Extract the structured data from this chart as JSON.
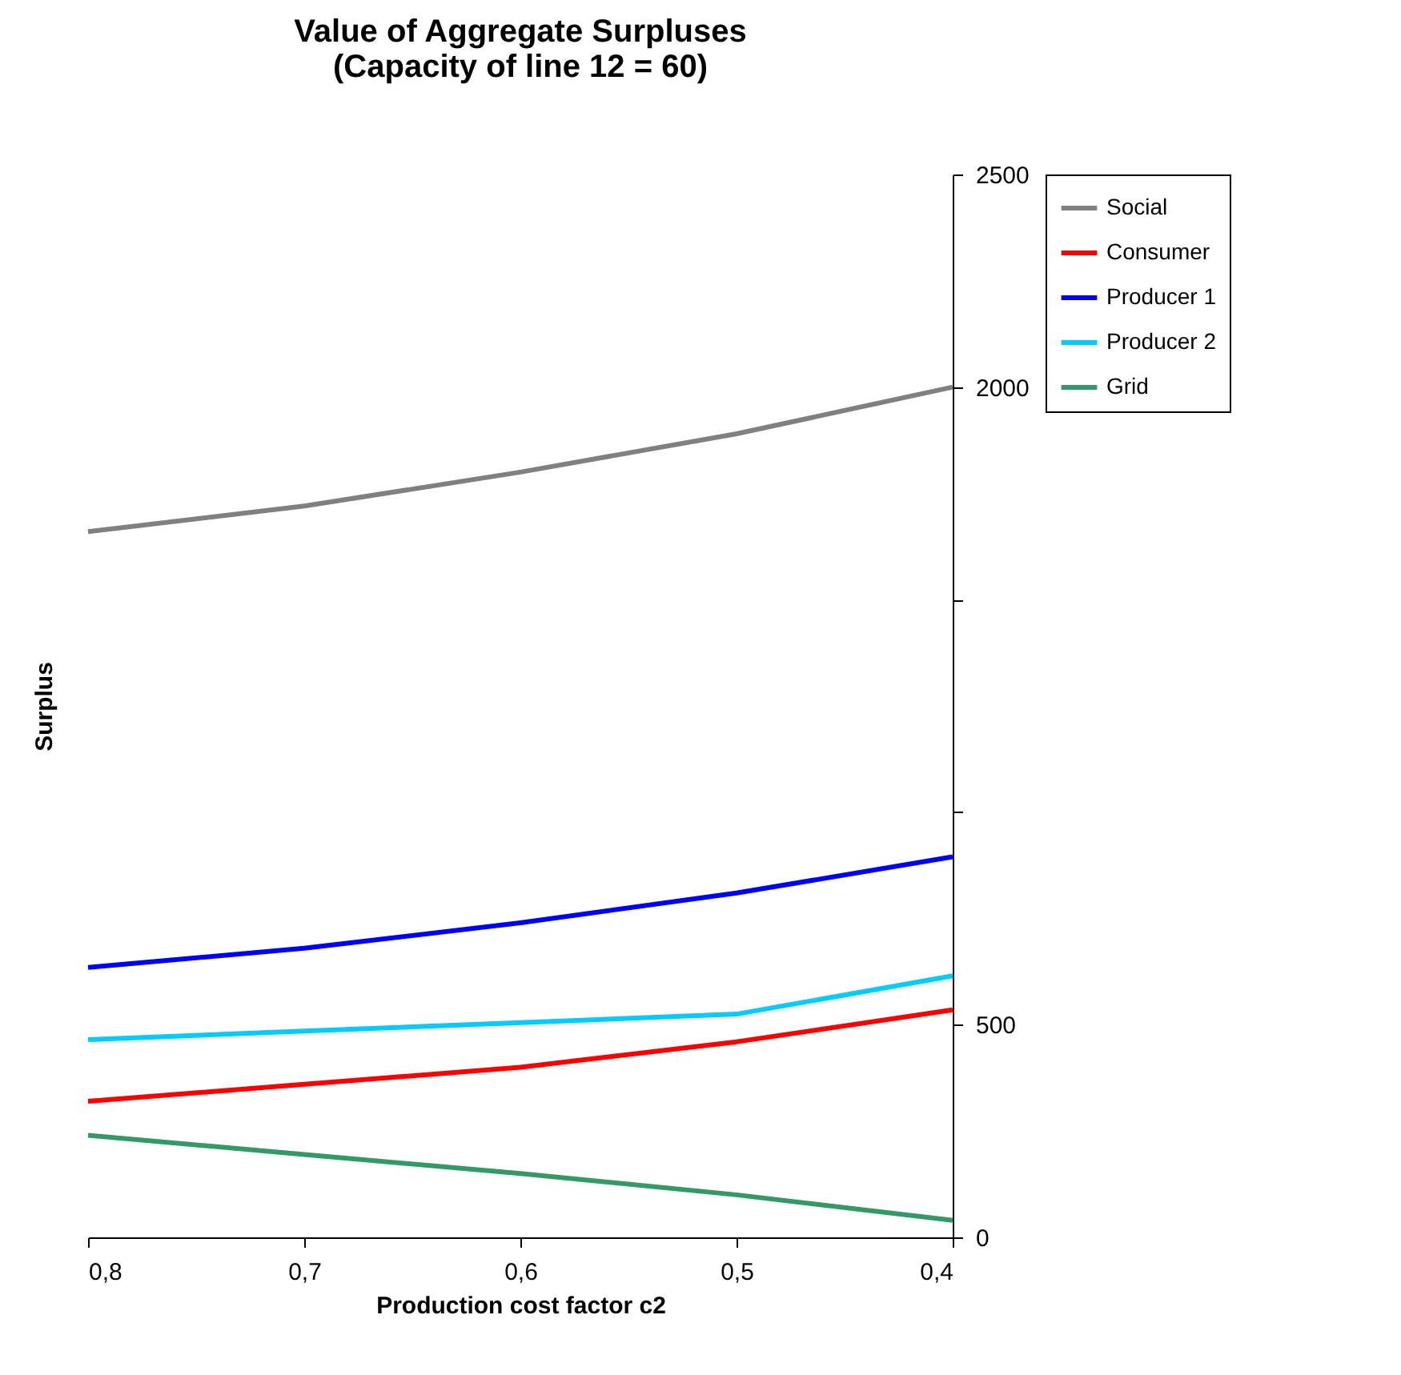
{
  "chart_data": {
    "type": "line",
    "title": "Value of Aggregate Surpluses\n(Capacity of line 12 = 60)",
    "xlabel": "Production cost factor c2",
    "ylabel": "Surplus",
    "x": [
      0.8,
      0.7,
      0.6,
      0.5,
      0.4
    ],
    "series": [
      {
        "name": "Social",
        "color": "#808080",
        "values": [
          1660,
          1720,
          1800,
          1890,
          2000
        ]
      },
      {
        "name": "Consumer",
        "color": "#ff0000",
        "values": [
          320,
          360,
          400,
          460,
          535
        ]
      },
      {
        "name": "Producer 1",
        "color": "#0000ff",
        "values": [
          635,
          680,
          740,
          810,
          895
        ]
      },
      {
        "name": "Producer 2",
        "color": "#00ccff",
        "values": [
          465,
          485,
          505,
          525,
          615
        ]
      },
      {
        "name": "Grid",
        "color": "#339966",
        "values": [
          240,
          195,
          150,
          100,
          40
        ]
      }
    ],
    "xlim": [
      0.8,
      0.4
    ],
    "xticks": [
      {
        "value": 0.8,
        "label": "0,8"
      },
      {
        "value": 0.7,
        "label": "0,7"
      },
      {
        "value": 0.6,
        "label": "0,6"
      },
      {
        "value": 0.5,
        "label": "0,5"
      },
      {
        "value": 0.4,
        "label": "0,4"
      }
    ],
    "ylim": [
      0,
      2500
    ],
    "yticks": [
      0,
      500,
      {
        "value": 1000,
        "label": null
      },
      {
        "value": 1500,
        "label": null
      },
      2000,
      2500
    ],
    "grid": false,
    "legend": "right",
    "marker": "none",
    "line_style": "solid"
  }
}
